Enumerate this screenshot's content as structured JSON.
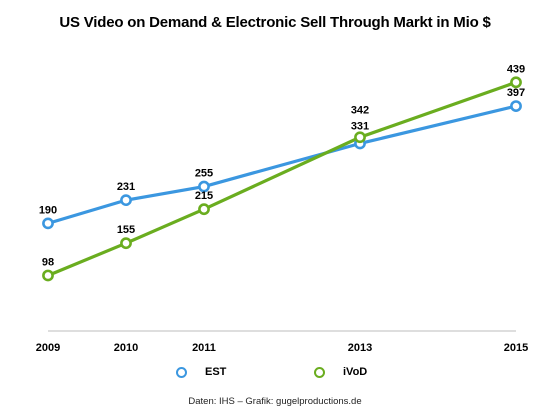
{
  "chart_data": {
    "type": "line",
    "title": "US Video on Demand & Electronic Sell Through Markt in Mio $",
    "xlabel": "",
    "ylabel": "",
    "x": [
      "2009",
      "2010",
      "2011",
      "2013",
      "2015"
    ],
    "ylim": [
      0,
      500
    ],
    "grid": false,
    "legend_position": "bottom",
    "series": [
      {
        "name": "EST",
        "color": "#3b97e0",
        "values": [
          190,
          231,
          255,
          331,
          397
        ],
        "labels": [
          "190",
          "231",
          "255",
          "331",
          "397"
        ]
      },
      {
        "name": "iVoD",
        "color": "#6aad1f",
        "values": [
          98,
          155,
          215,
          342,
          439
        ],
        "labels": [
          "98",
          "155",
          "215",
          "342",
          "439"
        ]
      }
    ]
  },
  "source_note": "Daten: IHS – Grafik: gugelproductions.de"
}
